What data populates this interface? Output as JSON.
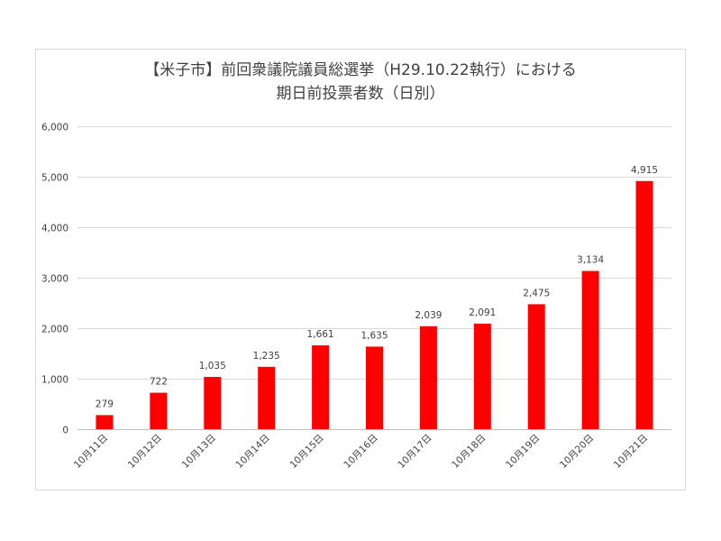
{
  "chart_data": {
    "type": "bar",
    "title_line1": "【米子市】前回衆議院議員総選挙（H29.10.22執行）における",
    "title_line2": "期日前投票者数（日別）",
    "categories": [
      "10月11日",
      "10月12日",
      "10月13日",
      "10月14日",
      "10月15日",
      "10月16日",
      "10月17日",
      "10月18日",
      "10月19日",
      "10月20日",
      "10月21日"
    ],
    "values": [
      279,
      722,
      1035,
      1235,
      1661,
      1635,
      2039,
      2091,
      2475,
      3134,
      4915
    ],
    "data_labels": [
      "279",
      "722",
      "1,035",
      "1,235",
      "1,661",
      "1,635",
      "2,039",
      "2,091",
      "2,475",
      "3,134",
      "4,915"
    ],
    "y_ticks": [
      0,
      1000,
      2000,
      3000,
      4000,
      5000,
      6000
    ],
    "y_tick_labels": [
      "0",
      "1,000",
      "2,000",
      "3,000",
      "4,000",
      "5,000",
      "6,000"
    ],
    "ylim": [
      0,
      6000
    ],
    "grid": true,
    "legend": "none",
    "bar_color": "#ff0000",
    "grid_color": "#d9d9d9",
    "text_color": "#404040"
  }
}
